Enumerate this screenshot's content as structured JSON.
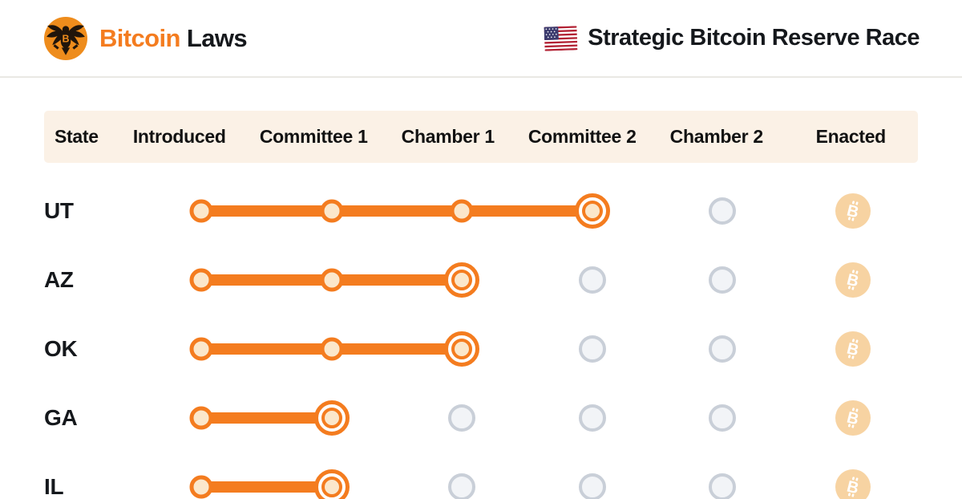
{
  "brand": {
    "logo_icon": "bitcoin-laws-eagle-logo",
    "title_primary": "Bitcoin",
    "title_secondary": "Laws"
  },
  "page": {
    "flag_icon": "us-flag",
    "title": "Strategic Bitcoin Reserve Race"
  },
  "table": {
    "columns": [
      "State",
      "Introduced",
      "Committee 1",
      "Chamber 1",
      "Committee 2",
      "Chamber 2",
      "Enacted"
    ],
    "stages": [
      "Introduced",
      "Committee 1",
      "Chamber 1",
      "Committee 2",
      "Chamber 2",
      "Enacted"
    ],
    "rows": [
      {
        "state": "UT",
        "current_stage": "Committee 2",
        "current_stage_index": 3,
        "enacted": false
      },
      {
        "state": "AZ",
        "current_stage": "Chamber 1",
        "current_stage_index": 2,
        "enacted": false
      },
      {
        "state": "OK",
        "current_stage": "Chamber 1",
        "current_stage_index": 2,
        "enacted": false
      },
      {
        "state": "GA",
        "current_stage": "Committee 1",
        "current_stage_index": 1,
        "enacted": false
      },
      {
        "state": "IL",
        "current_stage": "Committee 1",
        "current_stage_index": 1,
        "enacted": false
      }
    ]
  },
  "colors": {
    "accent_orange": "#F47C1F",
    "dot_fill": "#FBE7CB",
    "header_band": "#FBF1E6",
    "pending_border": "#C9CFD8",
    "pending_fill": "#F2F4F7",
    "enacted_faded": "#F7D3A2",
    "logo_circle": "#EE8C1C",
    "text": "#15181c"
  }
}
